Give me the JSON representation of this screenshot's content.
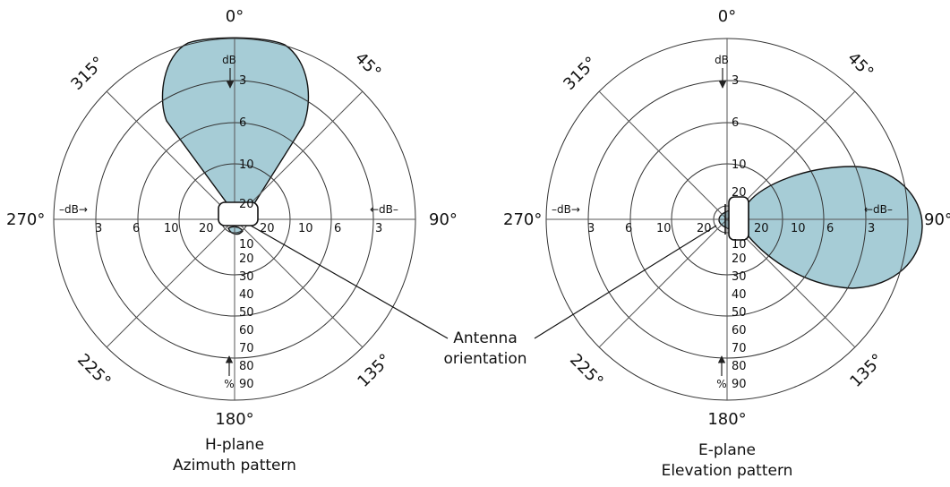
{
  "colors": {
    "lobe_fill": "#a6ccd6",
    "lobe_stroke": "#111111",
    "grid": "#555555"
  },
  "angles": {
    "a0": "0°",
    "a45": "45°",
    "a90": "90°",
    "a135": "135°",
    "a180": "180°",
    "a225": "225°",
    "a270": "270°",
    "a315": "315°"
  },
  "db_ticks": [
    "3",
    "6",
    "10",
    "20"
  ],
  "pct_ticks": [
    "10",
    "20",
    "30",
    "40",
    "50",
    "60",
    "70",
    "80",
    "90"
  ],
  "units": {
    "db": "dB",
    "pct": "%",
    "db_left": "–dB→",
    "db_right": "←dB–"
  },
  "callout": {
    "line1": "Antenna",
    "line2": "orientation"
  },
  "h_plane": {
    "title": "H-plane",
    "subtitle": "Azimuth pattern"
  },
  "e_plane": {
    "title": "E-plane",
    "subtitle": "Elevation pattern"
  }
}
